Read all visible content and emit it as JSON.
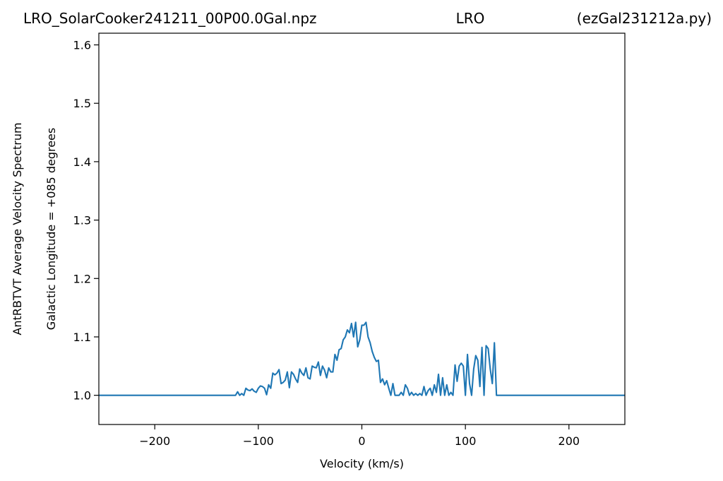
{
  "chart_data": {
    "type": "line",
    "title_parts": [
      "LRO_SolarCooker241211_00P00.0Gal.npz",
      "LRO",
      "(ezGal231212a.py)"
    ],
    "xlabel": "Velocity (km/s)",
    "ylabel_lines": [
      "AntRBTVT Average Velocity Spectrum",
      "Galactic Longitude = +085 degrees"
    ],
    "xlim": [
      -254,
      254
    ],
    "ylim": [
      0.95,
      1.62
    ],
    "xticks": [
      -200,
      -100,
      0,
      100,
      200
    ],
    "xtick_labels": [
      "−200",
      "−100",
      "0",
      "100",
      "200"
    ],
    "yticks": [
      1.0,
      1.1,
      1.2,
      1.3,
      1.4,
      1.5,
      1.6
    ],
    "ytick_labels": [
      "1.0",
      "1.1",
      "1.2",
      "1.3",
      "1.4",
      "1.5",
      "1.6"
    ],
    "grid": false,
    "line_color": "#1f77b4",
    "series": [
      {
        "x": [
          -254,
          -122,
          -120,
          -118,
          -116,
          -114,
          -112,
          -110,
          -108,
          -106,
          -104,
          -102,
          -100,
          -98,
          -96,
          -94,
          -92,
          -90,
          -88,
          -86,
          -84,
          -82,
          -80,
          -78,
          -76,
          -74,
          -72,
          -70,
          -68,
          -66,
          -64,
          -62,
          -60,
          -58,
          -56,
          -54,
          -52,
          -50,
          -48,
          -46,
          -44,
          -42,
          -40,
          -38,
          -36,
          -34,
          -32,
          -30,
          -28,
          -26,
          -24,
          -22,
          -20,
          -18,
          -16,
          -14,
          -12,
          -10,
          -8,
          -6,
          -4,
          -2,
          0,
          2,
          4,
          6,
          8,
          10,
          12,
          14,
          16,
          18,
          20,
          22,
          24,
          26,
          28,
          30,
          32,
          34,
          36,
          38,
          40,
          42,
          44,
          46,
          48,
          50,
          52,
          54,
          56,
          58,
          60,
          62,
          64,
          66,
          68,
          70,
          72,
          74,
          76,
          78,
          80,
          82,
          84,
          86,
          88,
          90,
          92,
          94,
          96,
          98,
          100,
          102,
          104,
          106,
          108,
          110,
          112,
          114,
          116,
          118,
          120,
          122,
          124,
          126,
          128,
          130,
          132,
          254
        ],
        "y": [
          1.0,
          1.0,
          1.006,
          1.0,
          1.003,
          1.0,
          1.012,
          1.009,
          1.008,
          1.011,
          1.007,
          1.005,
          1.012,
          1.016,
          1.015,
          1.012,
          1.001,
          1.018,
          1.012,
          1.038,
          1.035,
          1.038,
          1.044,
          1.02,
          1.022,
          1.026,
          1.04,
          1.013,
          1.04,
          1.036,
          1.028,
          1.022,
          1.045,
          1.038,
          1.034,
          1.047,
          1.03,
          1.028,
          1.05,
          1.048,
          1.047,
          1.057,
          1.034,
          1.05,
          1.043,
          1.03,
          1.047,
          1.04,
          1.04,
          1.07,
          1.06,
          1.078,
          1.08,
          1.095,
          1.1,
          1.112,
          1.107,
          1.123,
          1.1,
          1.125,
          1.083,
          1.095,
          1.12,
          1.12,
          1.125,
          1.1,
          1.09,
          1.075,
          1.065,
          1.058,
          1.06,
          1.022,
          1.028,
          1.018,
          1.025,
          1.012,
          1.0,
          1.02,
          1.0,
          1.0,
          1.0,
          1.005,
          1.0,
          1.018,
          1.012,
          1.0,
          1.005,
          1.0,
          1.003,
          1.0,
          1.003,
          1.0,
          1.015,
          1.0,
          1.008,
          1.012,
          1.0,
          1.018,
          1.005,
          1.036,
          1.0,
          1.03,
          1.0,
          1.018,
          1.0,
          1.005,
          1.0,
          1.052,
          1.024,
          1.05,
          1.055,
          1.05,
          1.0,
          1.07,
          1.02,
          1.0,
          1.045,
          1.068,
          1.06,
          1.015,
          1.082,
          1.0,
          1.085,
          1.08,
          1.045,
          1.02,
          1.09,
          1.0,
          1.0,
          1.0
        ]
      }
    ]
  }
}
